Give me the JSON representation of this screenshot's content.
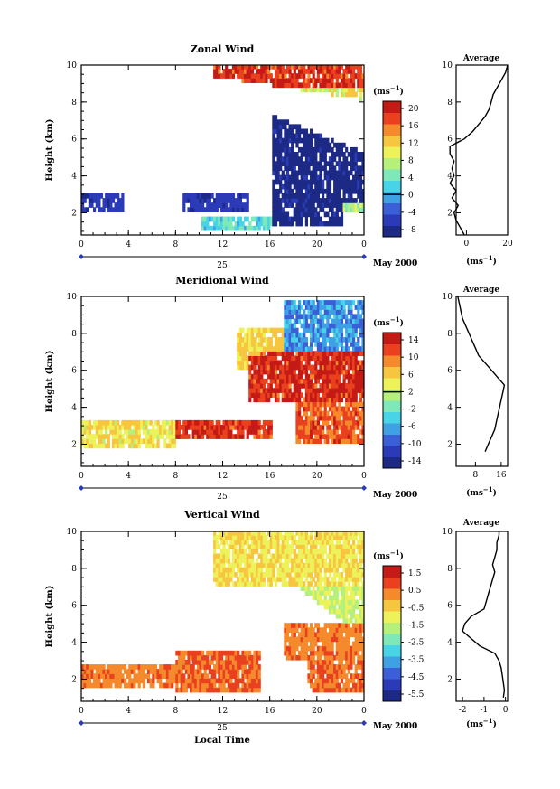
{
  "colors": {
    "palette": [
      "#1c2a86",
      "#2b3bb8",
      "#3a5fd6",
      "#3fa1e3",
      "#49d3e6",
      "#7ee8b8",
      "#b5f07a",
      "#eef25a",
      "#f7c640",
      "#f58a2c",
      "#e9401f",
      "#c41b17"
    ]
  },
  "chart_data": [
    {
      "type": "heatmap",
      "title": "Zonal Wind",
      "ylabel": "Height (km)",
      "xlabel": "",
      "date_label": "May 2000",
      "day_label": "25",
      "x_ticks": [
        "0",
        "4",
        "8",
        "12",
        "16",
        "20",
        "0"
      ],
      "x_range": [
        0,
        24
      ],
      "y_ticks": [
        "2",
        "4",
        "6",
        "8",
        "10"
      ],
      "y_range": [
        0.8,
        10
      ],
      "colorbar": {
        "unit": "(ms⁻¹)",
        "ticks": [
          "20",
          "16",
          "12",
          "8",
          "4",
          "0",
          "-4",
          "-8"
        ],
        "range": [
          -10,
          22
        ],
        "zero_line": 0
      },
      "description_hint": "easterly (negative) flow below ~7 km after 16 LT, westerly (positive) above 7 km",
      "average_profile": {
        "title": "Average",
        "xlabel": "(ms⁻¹)",
        "x_ticks": [
          "0",
          "20"
        ],
        "x_range": [
          -5,
          20
        ],
        "y_ticks": [
          "2",
          "4",
          "6",
          "8",
          "10"
        ],
        "heights": [
          0.8,
          1.2,
          1.6,
          2.0,
          2.4,
          2.8,
          3.2,
          3.6,
          4.0,
          4.4,
          4.8,
          5.2,
          5.6,
          6.0,
          6.4,
          6.8,
          7.2,
          7.6,
          8.0,
          8.4,
          8.8,
          9.2,
          9.6,
          10.0
        ],
        "values": [
          -1,
          -3,
          -5,
          -6,
          -4,
          -7,
          -5,
          -8,
          -6,
          -7,
          -6,
          -8,
          -8,
          -1,
          3,
          6,
          9,
          11,
          12,
          13,
          15,
          17,
          19,
          20
        ]
      }
    },
    {
      "type": "heatmap",
      "title": "Meridional Wind",
      "ylabel": "Height (km)",
      "xlabel": "",
      "date_label": "May 2000",
      "day_label": "25",
      "x_ticks": [
        "0",
        "4",
        "8",
        "12",
        "16",
        "20",
        "0"
      ],
      "x_range": [
        0,
        24
      ],
      "y_ticks": [
        "2",
        "4",
        "6",
        "8",
        "10"
      ],
      "y_range": [
        0.8,
        10
      ],
      "colorbar": {
        "unit": "(ms⁻¹)",
        "ticks": [
          "14",
          "10",
          "6",
          "2",
          "-2",
          "-6",
          "-10",
          "-14"
        ],
        "range": [
          -16,
          16
        ],
        "zero_line": 2
      },
      "average_profile": {
        "title": "Average",
        "xlabel": "(ms⁻¹)",
        "x_ticks": [
          "8",
          "16"
        ],
        "x_range": [
          2,
          18
        ],
        "y_ticks": [
          "2",
          "4",
          "6",
          "8",
          "10"
        ],
        "heights": [
          1.6,
          2.0,
          2.4,
          2.8,
          3.2,
          3.6,
          4.0,
          4.4,
          4.8,
          5.2,
          5.6,
          6.0,
          6.4,
          6.8,
          7.2,
          7.6,
          8.0,
          8.4,
          8.8,
          9.2,
          9.6,
          10.0
        ],
        "values": [
          11,
          12,
          13,
          14,
          14.5,
          15,
          15.5,
          16,
          16.5,
          17,
          15,
          13,
          11,
          9,
          8,
          7,
          6,
          5,
          4,
          3.5,
          3,
          2.5
        ]
      }
    },
    {
      "type": "heatmap",
      "title": "Vertical Wind",
      "ylabel": "Height (km)",
      "xlabel": "Local Time",
      "date_label": "May 2000",
      "day_label": "25",
      "x_ticks": [
        "0",
        "4",
        "8",
        "12",
        "16",
        "20",
        "0"
      ],
      "x_range": [
        0,
        24
      ],
      "y_ticks": [
        "2",
        "4",
        "6",
        "8",
        "10"
      ],
      "y_range": [
        0.8,
        10
      ],
      "colorbar": {
        "unit": "(ms⁻¹)",
        "ticks": [
          "1.5",
          "0.5",
          "-0.5",
          "-1.5",
          "-2.5",
          "-3.5",
          "-4.5",
          "-5.5"
        ],
        "range": [
          -6.5,
          2.5
        ],
        "zero_line": null
      },
      "average_profile": {
        "title": "Average",
        "xlabel": "(ms⁻¹)",
        "x_ticks": [
          "-2",
          "-1",
          "0"
        ],
        "x_range": [
          -2.3,
          0.1
        ],
        "y_ticks": [
          "2",
          "4",
          "6",
          "8",
          "10"
        ],
        "heights": [
          1.0,
          1.4,
          1.8,
          2.2,
          2.6,
          3.0,
          3.4,
          3.8,
          4.2,
          4.6,
          5.0,
          5.4,
          5.8,
          6.2,
          6.6,
          7.0,
          7.4,
          7.8,
          8.2,
          8.6,
          9.0,
          9.4,
          9.8,
          10.0
        ],
        "values": [
          -0.1,
          -0.05,
          -0.1,
          -0.15,
          -0.2,
          -0.3,
          -0.5,
          -1.2,
          -1.6,
          -2.0,
          -1.9,
          -1.6,
          -1.0,
          -0.9,
          -0.8,
          -0.7,
          -0.6,
          -0.5,
          -0.6,
          -0.5,
          -0.4,
          -0.4,
          -0.3,
          -0.3
        ]
      }
    }
  ]
}
